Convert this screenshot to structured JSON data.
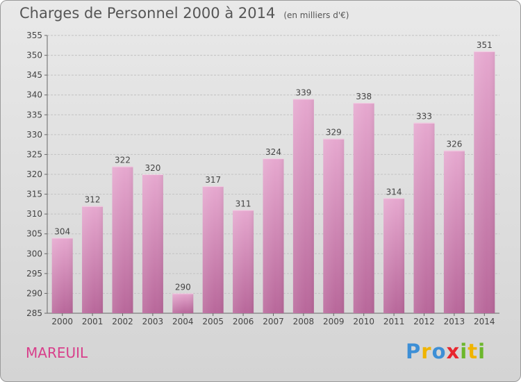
{
  "title": "Charges de Personnel 2000 à 2014",
  "subtitle": "(en milliers d'€)",
  "commune": "MAREUIL",
  "logo": {
    "text": "Proxiti",
    "letters": [
      {
        "ch": "P",
        "color": "#3d8fd6"
      },
      {
        "ch": "r",
        "color": "#f0b400"
      },
      {
        "ch": "o",
        "color": "#3d8fd6"
      },
      {
        "ch": "x",
        "color": "#e8262e"
      },
      {
        "ch": "i",
        "color": "#6cb72c"
      },
      {
        "ch": "t",
        "color": "#f0b400"
      },
      {
        "ch": "i",
        "color": "#6cb72c"
      }
    ]
  },
  "chart_data": {
    "type": "bar",
    "categories": [
      "2000",
      "2001",
      "2002",
      "2003",
      "2004",
      "2005",
      "2006",
      "2007",
      "2008",
      "2009",
      "2010",
      "2011",
      "2012",
      "2013",
      "2014"
    ],
    "values": [
      304,
      312,
      322,
      320,
      290,
      317,
      311,
      324,
      339,
      329,
      338,
      314,
      333,
      326,
      351
    ],
    "ylim": [
      285,
      355
    ],
    "yticks": [
      285,
      290,
      295,
      300,
      305,
      310,
      315,
      320,
      325,
      330,
      335,
      340,
      345,
      350,
      355
    ],
    "grid": true,
    "bar_color": "#d98cb8"
  }
}
